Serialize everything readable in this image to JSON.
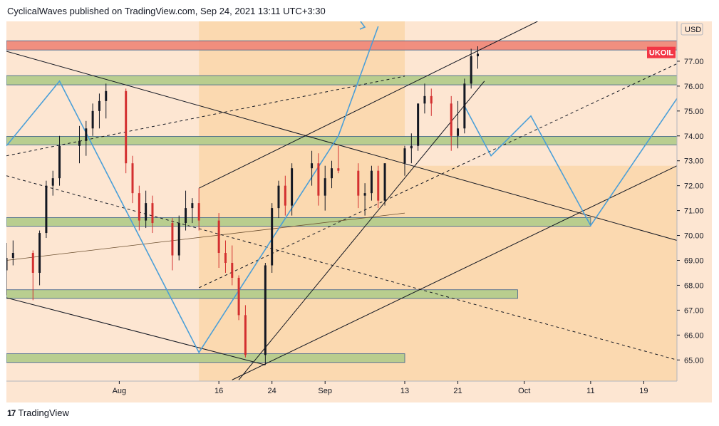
{
  "header": {
    "text": "CyclicalWaves published on TradingView.com, Sep 24, 2021 13:11 UTC+3:30"
  },
  "footer": {
    "brand": "TradingView",
    "logo_glyph": "17"
  },
  "colors": {
    "background_outer": "#fde6d2",
    "background_inner": "#fbd9b0",
    "zone_green": "#b5cc8c",
    "zone_red": "#f08a7a",
    "wave_blue": "#4a9fd8",
    "candle_up": "#131722",
    "candle_down": "#d32f2f",
    "symbol_badge": "#f23645"
  },
  "chart_data": {
    "type": "candlestick",
    "symbol": "UKOIL",
    "currency": "USD",
    "x_axis_ticks": [
      "Aug",
      "16",
      "24",
      "Sep",
      "13",
      "21",
      "Oct",
      "11",
      "19"
    ],
    "y_axis_ticks": [
      "65.00",
      "66.00",
      "67.00",
      "68.00",
      "69.00",
      "70.00",
      "71.00",
      "72.00",
      "73.00",
      "74.00",
      "75.00",
      "76.00",
      "77.00"
    ],
    "ylim": [
      64.15,
      78.6
    ],
    "xlim": [
      "2021-07-15",
      "2021-10-24"
    ],
    "grid": false,
    "last_price_label": "UKOIL",
    "candles_approx": [
      [
        "2021-07-15",
        68.6,
        69.7,
        67.6,
        69.1
      ],
      [
        "2021-07-16",
        69.1,
        69.8,
        68.8,
        69.3
      ],
      [
        "2021-07-19",
        69.3,
        69.4,
        67.4,
        68.5
      ],
      [
        "2021-07-20",
        68.5,
        70.2,
        68.0,
        70.1
      ],
      [
        "2021-07-21",
        70.1,
        72.2,
        69.9,
        72.0
      ],
      [
        "2021-07-22",
        72.0,
        72.6,
        71.6,
        72.3
      ],
      [
        "2021-07-23",
        72.3,
        74.0,
        72.0,
        73.6
      ],
      [
        "2021-07-26",
        73.6,
        74.4,
        72.9,
        73.8
      ],
      [
        "2021-07-27",
        73.8,
        74.6,
        73.2,
        74.3
      ],
      [
        "2021-07-28",
        74.3,
        75.3,
        74.0,
        75.0
      ],
      [
        "2021-07-29",
        75.0,
        75.7,
        74.3,
        75.4
      ],
      [
        "2021-07-30",
        75.4,
        76.1,
        74.7,
        75.8
      ],
      [
        "2021-08-02",
        75.8,
        75.9,
        72.5,
        72.9
      ],
      [
        "2021-08-03",
        72.9,
        73.2,
        71.3,
        71.7
      ],
      [
        "2021-08-04",
        71.7,
        72.0,
        70.2,
        70.6
      ],
      [
        "2021-08-05",
        70.6,
        71.8,
        70.3,
        71.3
      ],
      [
        "2021-08-06",
        71.3,
        71.6,
        70.1,
        70.5
      ],
      [
        "2021-08-09",
        70.5,
        70.7,
        68.6,
        69.2
      ],
      [
        "2021-08-10",
        69.2,
        70.8,
        69.0,
        70.5
      ],
      [
        "2021-08-11",
        70.5,
        71.8,
        70.2,
        71.1
      ],
      [
        "2021-08-12",
        71.1,
        71.5,
        70.5,
        71.3
      ],
      [
        "2021-08-13",
        71.3,
        71.9,
        70.2,
        70.6
      ],
      [
        "2021-08-16",
        70.6,
        70.9,
        68.7,
        69.3
      ],
      [
        "2021-08-17",
        69.3,
        69.8,
        68.5,
        68.9
      ],
      [
        "2021-08-18",
        68.9,
        69.6,
        68.0,
        68.3
      ],
      [
        "2021-08-19",
        68.3,
        68.4,
        66.6,
        66.8
      ],
      [
        "2021-08-20",
        66.8,
        67.2,
        65.1,
        65.2
      ],
      [
        "2021-08-23",
        65.2,
        68.9,
        64.8,
        68.8
      ],
      [
        "2021-08-24",
        68.8,
        71.3,
        68.5,
        71.1
      ],
      [
        "2021-08-25",
        71.1,
        72.2,
        70.7,
        72.0
      ],
      [
        "2021-08-26",
        72.0,
        72.4,
        70.8,
        71.2
      ],
      [
        "2021-08-27",
        71.2,
        72.9,
        70.8,
        72.7
      ],
      [
        "2021-08-30",
        72.7,
        73.4,
        72.0,
        72.9
      ],
      [
        "2021-08-31",
        72.9,
        73.3,
        71.2,
        71.6
      ],
      [
        "2021-09-01",
        71.6,
        72.8,
        71.0,
        72.3
      ],
      [
        "2021-09-02",
        72.3,
        73.0,
        71.9,
        72.7
      ],
      [
        "2021-09-03",
        72.7,
        73.6,
        72.5,
        72.6
      ],
      [
        "2021-09-06",
        72.6,
        72.9,
        71.1,
        71.6
      ],
      [
        "2021-09-07",
        71.6,
        72.1,
        70.8,
        71.7
      ],
      [
        "2021-09-08",
        71.7,
        72.8,
        71.4,
        72.6
      ],
      [
        "2021-09-09",
        72.6,
        72.8,
        71.1,
        71.4
      ],
      [
        "2021-09-10",
        71.4,
        72.9,
        71.2,
        72.9
      ],
      [
        "2021-09-13",
        72.9,
        73.6,
        72.4,
        73.5
      ],
      [
        "2021-09-14",
        73.5,
        74.1,
        72.9,
        73.6
      ],
      [
        "2021-09-15",
        73.6,
        75.3,
        73.4,
        75.3
      ],
      [
        "2021-09-16",
        75.3,
        76.1,
        74.9,
        75.6
      ],
      [
        "2021-09-17",
        75.6,
        75.9,
        74.8,
        75.3
      ],
      [
        "2021-09-20",
        75.3,
        75.6,
        73.4,
        74.0
      ],
      [
        "2021-09-21",
        74.0,
        75.4,
        73.5,
        74.3
      ],
      [
        "2021-09-22",
        74.3,
        76.3,
        74.1,
        76.1
      ],
      [
        "2021-09-23",
        76.1,
        77.5,
        75.9,
        77.2
      ],
      [
        "2021-09-24",
        77.2,
        77.6,
        76.7,
        77.3
      ]
    ]
  }
}
